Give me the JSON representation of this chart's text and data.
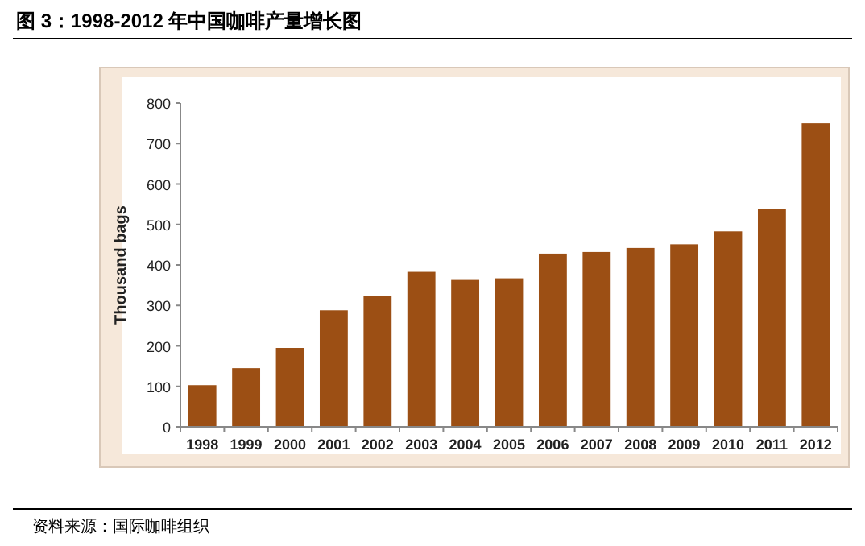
{
  "chart_data": {
    "type": "bar",
    "title": "图 3：1998-2012 年中国咖啡产量增长图",
    "ylabel": "Thousand bags",
    "categories": [
      "1998",
      "1999",
      "2000",
      "2001",
      "2002",
      "2003",
      "2004",
      "2005",
      "2006",
      "2007",
      "2008",
      "2009",
      "2010",
      "2011",
      "2012"
    ],
    "values": [
      103,
      145,
      195,
      288,
      323,
      383,
      363,
      367,
      428,
      432,
      442,
      451,
      483,
      538,
      750
    ],
    "color": "#9c4f14",
    "ylim": [
      0,
      800
    ],
    "yticks": [
      0,
      100,
      200,
      300,
      400,
      500,
      600,
      700,
      800
    ],
    "annotations": [
      "资料来源：国际咖啡组织"
    ]
  }
}
